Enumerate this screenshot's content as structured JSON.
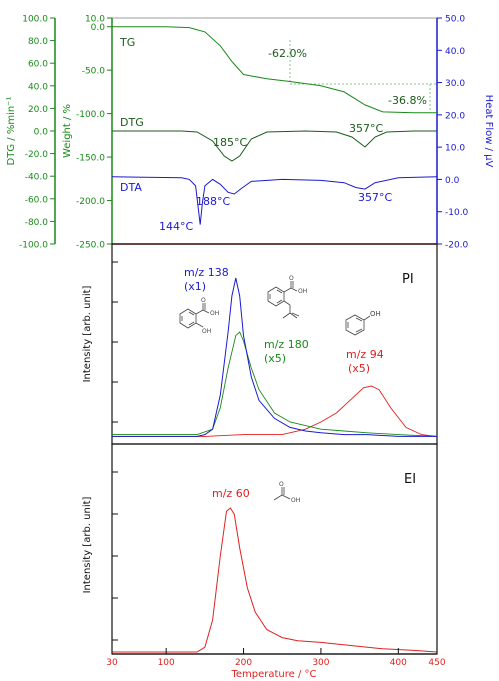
{
  "colors": {
    "green": "#1a8a1a",
    "blue": "#1a1ad0",
    "red": "#e02020",
    "dark": "#1a5a1a",
    "black": "#111111",
    "gray": "#666666"
  },
  "chart_data": [
    {
      "type": "line",
      "panel": "thermal",
      "x_axis": {
        "label": "Temperature / °C",
        "range": [
          30,
          450
        ],
        "ticks": [
          30,
          100,
          200,
          300,
          400,
          450
        ]
      },
      "y_axes": {
        "dtg": {
          "label": "DTG / %min⁻¹",
          "range": [
            -100,
            100
          ],
          "ticks": [
            "100.0",
            "80.0",
            "60.0",
            "40.0",
            "20.0",
            "0.0",
            "-20.0",
            "-40.0",
            "-60.0",
            "-80.0",
            "-100.0"
          ]
        },
        "weight": {
          "label": "Weight / %",
          "range": [
            -250,
            10
          ],
          "ticks": [
            "10.0",
            "0.0",
            "-50.0",
            "-100.0",
            "-150.0",
            "-200.0",
            "-250.0"
          ]
        },
        "heat": {
          "label": "Heat Flow / μV",
          "range": [
            -20,
            50
          ],
          "ticks": [
            "50.0",
            "40.0",
            "30.0",
            "20.0",
            "10.0",
            "0.0",
            "-10.0",
            "-20.0"
          ]
        }
      },
      "series": [
        {
          "name": "TG",
          "axis": "weight",
          "x": [
            30,
            100,
            130,
            150,
            170,
            185,
            200,
            230,
            260,
            300,
            330,
            357,
            380,
            420,
            450
          ],
          "y": [
            0,
            0,
            -1,
            -6,
            -22,
            -40,
            -55,
            -60,
            -63,
            -68,
            -75,
            -90,
            -98,
            -99,
            -99
          ]
        },
        {
          "name": "DTG",
          "axis": "dtg",
          "x": [
            30,
            120,
            140,
            160,
            175,
            185,
            195,
            210,
            230,
            280,
            320,
            340,
            357,
            370,
            385,
            420,
            450
          ],
          "y": [
            0,
            0,
            -1,
            -10,
            -25,
            -30,
            -25,
            -8,
            -1,
            0,
            -1,
            -6,
            -16,
            -6,
            -1,
            0,
            0
          ]
        },
        {
          "name": "DTA",
          "axis": "heat",
          "x": [
            30,
            120,
            130,
            138,
            141,
            144,
            147,
            150,
            160,
            170,
            180,
            188,
            196,
            210,
            250,
            300,
            330,
            345,
            357,
            370,
            400,
            450
          ],
          "y": [
            0.8,
            0.5,
            0,
            -2,
            -8,
            -14,
            -7,
            -2,
            0,
            -1.5,
            -4,
            -4.5,
            -3,
            -0.6,
            0,
            -0.3,
            -1,
            -2.5,
            -3,
            -1,
            0.5,
            0.8
          ]
        }
      ],
      "annotations": [
        {
          "text": "TG"
        },
        {
          "text": "-62.0%"
        },
        {
          "text": "-36.8%"
        },
        {
          "text": "DTG"
        },
        {
          "text": "185°C"
        },
        {
          "text": "357°C"
        },
        {
          "text": "DTA"
        },
        {
          "text": "144°C"
        },
        {
          "text": "188°C"
        },
        {
          "text": "357°C"
        }
      ]
    },
    {
      "type": "line",
      "panel": "PI",
      "title": "PI",
      "ylabel": "Intensity [arb. unit]",
      "x_range": [
        30,
        450
      ],
      "series": [
        {
          "name": "m/z 138",
          "factor": "(x1)",
          "x": [
            30,
            140,
            150,
            160,
            170,
            180,
            185,
            190,
            195,
            200,
            210,
            220,
            240,
            260,
            280,
            300,
            330,
            360,
            400,
            450
          ],
          "y": [
            0.02,
            0.02,
            0.03,
            0.06,
            0.25,
            0.6,
            0.8,
            0.9,
            0.8,
            0.58,
            0.35,
            0.22,
            0.12,
            0.07,
            0.05,
            0.04,
            0.03,
            0.03,
            0.02,
            0.02
          ]
        },
        {
          "name": "m/z 180",
          "factor": "(x5)",
          "x": [
            30,
            140,
            160,
            170,
            180,
            190,
            195,
            200,
            210,
            220,
            240,
            260,
            280,
            300,
            330,
            360,
            400,
            450
          ],
          "y": [
            0.03,
            0.03,
            0.06,
            0.18,
            0.4,
            0.58,
            0.6,
            0.55,
            0.4,
            0.28,
            0.15,
            0.1,
            0.08,
            0.06,
            0.05,
            0.04,
            0.03,
            0.02
          ]
        },
        {
          "name": "m/z 94",
          "factor": "(x5)",
          "x": [
            30,
            150,
            200,
            250,
            280,
            300,
            320,
            340,
            355,
            365,
            375,
            390,
            410,
            430,
            450
          ],
          "y": [
            0.02,
            0.02,
            0.03,
            0.03,
            0.06,
            0.1,
            0.15,
            0.23,
            0.29,
            0.3,
            0.28,
            0.18,
            0.07,
            0.03,
            0.02
          ]
        }
      ]
    },
    {
      "type": "line",
      "panel": "EI",
      "title": "EI",
      "ylabel": "Intensity [arb. unit]",
      "x_axis": {
        "label": "Temperature / °C",
        "ticks": [
          30,
          100,
          200,
          300,
          400,
          450
        ]
      },
      "x_range": [
        30,
        450
      ],
      "series": [
        {
          "name": "m/z 60",
          "x": [
            30,
            140,
            150,
            160,
            170,
            178,
            183,
            188,
            195,
            205,
            215,
            230,
            250,
            270,
            300,
            340,
            380,
            420,
            450
          ],
          "y": [
            0,
            0,
            0.03,
            0.2,
            0.6,
            0.88,
            0.9,
            0.86,
            0.65,
            0.4,
            0.25,
            0.14,
            0.09,
            0.07,
            0.06,
            0.04,
            0.02,
            0.01,
            0
          ]
        }
      ]
    }
  ]
}
